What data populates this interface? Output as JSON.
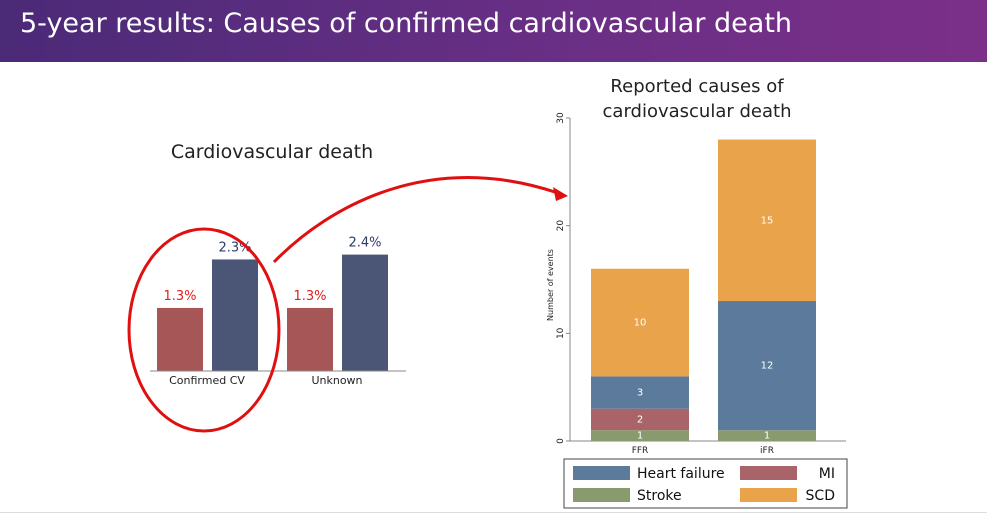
{
  "slide": {
    "title": "5-year results: Causes of confirmed cardiovascular death"
  },
  "colors": {
    "header": "#5a2d82",
    "red_bar": "#a65656",
    "navy_bar": "#4b5677",
    "red_label": "#e0201c",
    "navy_label": "#2d3c66",
    "heart_failure": "#5b7a9c",
    "mi": "#a86468",
    "stroke": "#889a6e",
    "scd": "#e8a34b",
    "highlight": "#e01010"
  },
  "chart_data": [
    {
      "type": "bar",
      "title": "Cardiovascular death",
      "categories": [
        "Confirmed CV",
        "Unknown"
      ],
      "series": [
        {
          "values": [
            1.3,
            1.3
          ],
          "labels": [
            "1.3%",
            "1.3%"
          ],
          "color": "#a65656"
        },
        {
          "values": [
            2.3,
            2.4
          ],
          "labels": [
            "2.3%",
            "2.4%"
          ],
          "color": "#4b5677"
        }
      ],
      "ylim": [
        0,
        3.0
      ]
    },
    {
      "type": "bar",
      "stacked": true,
      "title": "Reported causes of cardiovascular death",
      "ylabel": "Number of events",
      "categories": [
        "FFR",
        "iFR"
      ],
      "ylim": [
        0,
        30
      ],
      "yticks": [
        "0",
        "10",
        "20",
        "30"
      ],
      "series": [
        {
          "name": "Stroke",
          "values": [
            1,
            1
          ],
          "color": "#889a6e"
        },
        {
          "name": "MI",
          "values": [
            2,
            0
          ],
          "color": "#a86468"
        },
        {
          "name": "Heart failure",
          "values": [
            3,
            12
          ],
          "color": "#5b7a9c"
        },
        {
          "name": "SCD",
          "values": [
            10,
            15
          ],
          "color": "#e8a34b"
        }
      ],
      "legend": [
        "Heart failure",
        "MI",
        "Stroke",
        "SCD"
      ],
      "legend_position": "bottom"
    }
  ]
}
